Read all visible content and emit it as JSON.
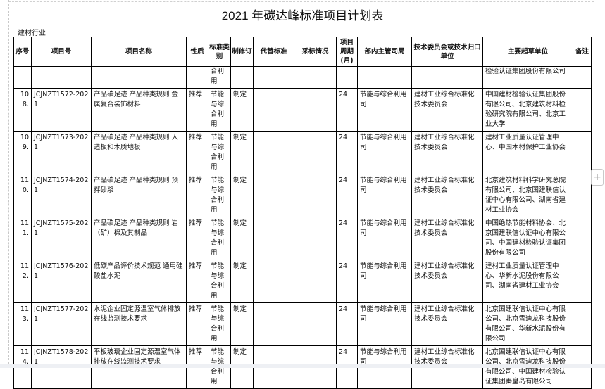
{
  "title": "2021 年碳达峰标准项目计划表",
  "industry": "建材行业",
  "headers": [
    "序号",
    "项目号",
    "项目名称",
    "性质",
    "标准类别",
    "制修订",
    "代替标准",
    "采标情况",
    "项目周期(月)",
    "部内主管司局",
    "技术委员会或技术归口单位",
    "主要起草单位",
    "备注"
  ],
  "partial_row": {
    "category": "合利用",
    "drafters": "检验认证集团股份有限公司"
  },
  "rows": [
    {
      "seq": "108.",
      "code": "JCJNZT1572-2021",
      "name": "产品碳足迹 产品种类规则 金属复合装饰材料",
      "nature": "推荐",
      "category": "节能与综合利用",
      "revision": "制定",
      "replace": "",
      "adopt": "",
      "period": "24",
      "dept": "节能与综合利用司",
      "committee": "建材工业综合标准化技术委员会",
      "drafters": "中国建材检验认证集团股份有限公司、北京建筑材料检验研究院有限公司、北京工业大学",
      "note": ""
    },
    {
      "seq": "109.",
      "code": "JCJNZT1573-2021",
      "name": "产品碳足迹 产品种类规则 人造板和木质地板",
      "nature": "推荐",
      "category": "节能与综合利用",
      "revision": "制定",
      "replace": "",
      "adopt": "",
      "period": "24",
      "dept": "节能与综合利用司",
      "committee": "建材工业综合标准化技术委员会",
      "drafters": "建材工业质量认证管理中心、中国木材保护工业协会",
      "note": ""
    },
    {
      "seq": "110.",
      "code": "JCJNZT1574-2021",
      "name": "产品碳足迹 产品种类规则 预拌砂浆",
      "nature": "推荐",
      "category": "节能与综合利用",
      "revision": "制定",
      "replace": "",
      "adopt": "",
      "period": "24",
      "dept": "节能与综合利用司",
      "committee": "建材工业综合标准化技术委员会",
      "drafters": "北京建筑材料科学研究总院有限公司、北京国建联信认证中心有限公司、湖南省建材工业协会",
      "note": ""
    },
    {
      "seq": "111.",
      "code": "JCJNZT1575-2021",
      "name": "产品碳足迹 产品种类规则 岩（矿）棉及其制品",
      "nature": "推荐",
      "category": "节能与综合利用",
      "revision": "制定",
      "replace": "",
      "adopt": "",
      "period": "24",
      "dept": "节能与综合利用司",
      "committee": "建材工业综合标准化技术委员会",
      "drafters": "中国绝热节能材料协会、北京国建联信认证中心有限公司、中国建材检验认证集团股份有限公司",
      "note": ""
    },
    {
      "seq": "112.",
      "code": "JCJNZT1576-2021",
      "name": "低碳产品评价技术规范 通用硅酸盐水泥",
      "nature": "推荐",
      "category": "节能与综合利用",
      "revision": "制定",
      "replace": "",
      "adopt": "",
      "period": "24",
      "dept": "节能与综合利用司",
      "committee": "建材工业综合标准化技术委员会",
      "drafters": "建材工业质量认证管理中心、华新水泥股份有限公司、湖南省建材工业协会",
      "note": ""
    },
    {
      "seq": "113.",
      "code": "JCJNZT1577-2021",
      "name": "水泥企业固定源温室气体排放在线监测技术要求",
      "nature": "推荐",
      "category": "节能与综合利用",
      "revision": "制定",
      "replace": "",
      "adopt": "",
      "period": "24",
      "dept": "节能与综合利用司",
      "committee": "建材工业综合标准化技术委员会",
      "drafters": "北京国建联信认证中心有限公司、北京雪迪龙科技股份有限公司、华新水泥股份有限公司",
      "note": ""
    },
    {
      "seq": "114.",
      "code": "JCJNZT1578-2021",
      "name": "平板玻璃企业固定源温室气体排放在线监测技术要求",
      "nature": "推荐",
      "category": "节能与综合利用",
      "revision": "制定",
      "replace": "",
      "adopt": "",
      "period": "24",
      "dept": "节能与综合利用司",
      "committee": "建材工业综合标准化技术委员会",
      "drafters": "北京国建联信认证中心有限公司、北京雪迪龙科技股份有限公司、中国建材检验认证集团秦皇岛有限公司",
      "note": ""
    }
  ],
  "add_button": "+"
}
